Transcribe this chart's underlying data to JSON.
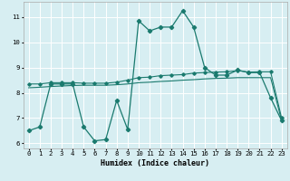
{
  "xlabel": "Humidex (Indice chaleur)",
  "xlim": [
    -0.5,
    23.5
  ],
  "ylim": [
    5.8,
    11.6
  ],
  "yticks": [
    6,
    7,
    8,
    9,
    10,
    11
  ],
  "xticks": [
    0,
    1,
    2,
    3,
    4,
    5,
    6,
    7,
    8,
    9,
    10,
    11,
    12,
    13,
    14,
    15,
    16,
    17,
    18,
    19,
    20,
    21,
    22,
    23
  ],
  "bg_color": "#d7eef2",
  "line_color": "#1a7a6e",
  "grid_color": "#ffffff",
  "curve1_x": [
    0,
    1,
    2,
    3,
    4,
    5,
    6,
    7,
    8,
    9,
    10,
    11,
    12,
    13,
    14,
    15,
    16,
    17,
    18,
    19,
    20,
    21,
    22,
    23
  ],
  "curve1_y": [
    6.5,
    6.65,
    8.35,
    8.35,
    8.35,
    6.65,
    6.1,
    6.15,
    7.7,
    6.55,
    10.85,
    10.45,
    10.6,
    10.6,
    11.25,
    10.6,
    9.0,
    8.7,
    8.7,
    8.9,
    8.8,
    8.8,
    7.8,
    6.9
  ],
  "curve2_x": [
    0,
    1,
    2,
    3,
    4,
    5,
    6,
    7,
    8,
    9,
    10,
    11,
    12,
    13,
    14,
    15,
    16,
    17,
    18,
    19,
    20,
    21,
    22,
    23
  ],
  "curve2_y": [
    8.35,
    8.35,
    8.4,
    8.4,
    8.4,
    8.38,
    8.38,
    8.38,
    8.42,
    8.5,
    8.6,
    8.62,
    8.68,
    8.7,
    8.72,
    8.78,
    8.8,
    8.82,
    8.83,
    8.88,
    8.82,
    8.83,
    8.83,
    7.0
  ],
  "curve3_x": [
    0,
    1,
    2,
    3,
    4,
    5,
    6,
    7,
    8,
    9,
    10,
    11,
    12,
    13,
    14,
    15,
    16,
    17,
    18,
    19,
    20,
    21,
    22,
    23
  ],
  "curve3_y": [
    8.2,
    8.22,
    8.25,
    8.27,
    8.29,
    8.3,
    8.3,
    8.3,
    8.32,
    8.35,
    8.4,
    8.42,
    8.45,
    8.47,
    8.5,
    8.52,
    8.55,
    8.57,
    8.58,
    8.6,
    8.6,
    8.6,
    8.6,
    6.9
  ]
}
